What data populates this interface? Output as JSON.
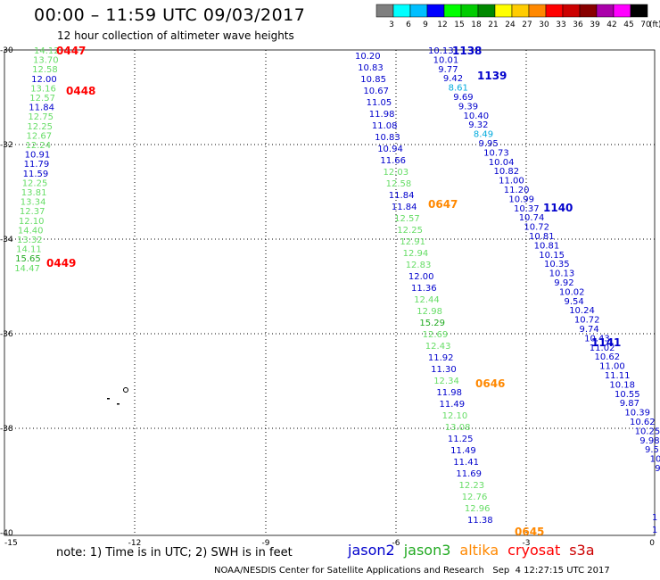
{
  "header": {
    "title": "00:00 – 11:59 UTC 09/03/2017",
    "subtitle": "12 hour collection of altimeter wave heights"
  },
  "colorbar": {
    "unit": "(ft)",
    "entries": [
      {
        "label": "3",
        "color": "#7f7f7f"
      },
      {
        "label": "6",
        "color": "#00ffff"
      },
      {
        "label": "9",
        "color": "#00bfff"
      },
      {
        "label": "12",
        "color": "#0000ff"
      },
      {
        "label": "15",
        "color": "#00ff00"
      },
      {
        "label": "18",
        "color": "#00cc00"
      },
      {
        "label": "21",
        "color": "#008800"
      },
      {
        "label": "24",
        "color": "#ffff00"
      },
      {
        "label": "27",
        "color": "#ffcc00"
      },
      {
        "label": "30",
        "color": "#ff8800"
      },
      {
        "label": "33",
        "color": "#ff0000"
      },
      {
        "label": "36",
        "color": "#cc0000"
      },
      {
        "label": "39",
        "color": "#880000"
      },
      {
        "label": "42",
        "color": "#aa00aa"
      },
      {
        "label": "45",
        "color": "#ff00ff"
      },
      {
        "label": "70",
        "color": "#000000"
      }
    ]
  },
  "axes": {
    "lat_ticks": [
      "-30",
      "-32",
      "-34",
      "-36",
      "-38",
      "-40"
    ],
    "lon_ticks": [
      "-15",
      "-12",
      "-9",
      "-6",
      "-3",
      "0"
    ]
  },
  "colors": {
    "jason2": "#0000cc",
    "jason3": "#22aa22",
    "jason3_light": "#66dd66",
    "altika": "#ff8800",
    "cryosat": "#ff0000",
    "s3a": "#cc0000",
    "cyan": "#00aadd"
  },
  "tracks": [
    {
      "name": "track-left",
      "values": [
        {
          "v": "14.12",
          "c": "jason3_light"
        },
        {
          "v": "13.70",
          "c": "jason3_light"
        },
        {
          "v": "12.58",
          "c": "jason3_light"
        },
        {
          "v": "12.00",
          "c": "jason2"
        },
        {
          "v": "13.16",
          "c": "jason3_light"
        },
        {
          "v": "12.57",
          "c": "jason3_light"
        },
        {
          "v": "11.84",
          "c": "jason2"
        },
        {
          "v": "12.75",
          "c": "jason3_light"
        },
        {
          "v": "12.25",
          "c": "jason3_light"
        },
        {
          "v": "12.67",
          "c": "jason3_light"
        },
        {
          "v": "12.24",
          "c": "jason3_light"
        },
        {
          "v": "10.91",
          "c": "jason2"
        },
        {
          "v": "11.79",
          "c": "jason2"
        },
        {
          "v": "11.59",
          "c": "jason2"
        },
        {
          "v": "12.25",
          "c": "jason3_light"
        },
        {
          "v": "13.81",
          "c": "jason3_light"
        },
        {
          "v": "13.34",
          "c": "jason3_light"
        },
        {
          "v": "12.37",
          "c": "jason3_light"
        },
        {
          "v": "12.10",
          "c": "jason3_light"
        },
        {
          "v": "14.40",
          "c": "jason3_light"
        },
        {
          "v": "13.32",
          "c": "jason3_light"
        },
        {
          "v": "14.11",
          "c": "jason3_light"
        },
        {
          "v": "15.65",
          "c": "jason3"
        },
        {
          "v": "14.47",
          "c": "jason3_light"
        }
      ]
    },
    {
      "name": "track-middle",
      "values": [
        {
          "v": "10.20",
          "c": "jason2"
        },
        {
          "v": "10.83",
          "c": "jason2"
        },
        {
          "v": "10.85",
          "c": "jason2"
        },
        {
          "v": "10.67",
          "c": "jason2"
        },
        {
          "v": "11.05",
          "c": "jason2"
        },
        {
          "v": "11.98",
          "c": "jason2"
        },
        {
          "v": "11.08",
          "c": "jason2"
        },
        {
          "v": "10.83",
          "c": "jason2"
        },
        {
          "v": "10.94",
          "c": "jason2"
        },
        {
          "v": "11.66",
          "c": "jason2"
        },
        {
          "v": "12.03",
          "c": "jason3_light"
        },
        {
          "v": "12.58",
          "c": "jason3_light"
        },
        {
          "v": "11.84",
          "c": "jason2"
        },
        {
          "v": "11.84",
          "c": "jason2"
        },
        {
          "v": "12.57",
          "c": "jason3_light"
        },
        {
          "v": "12.25",
          "c": "jason3_light"
        },
        {
          "v": "12.91",
          "c": "jason3_light"
        },
        {
          "v": "12.94",
          "c": "jason3_light"
        },
        {
          "v": "12.83",
          "c": "jason3_light"
        },
        {
          "v": "12.00",
          "c": "jason2"
        },
        {
          "v": "11.36",
          "c": "jason2"
        },
        {
          "v": "12.44",
          "c": "jason3_light"
        },
        {
          "v": "12.98",
          "c": "jason3_light"
        },
        {
          "v": "15.29",
          "c": "jason3"
        },
        {
          "v": "12.69",
          "c": "jason3_light"
        },
        {
          "v": "12.43",
          "c": "jason3_light"
        },
        {
          "v": "11.92",
          "c": "jason2"
        },
        {
          "v": "11.30",
          "c": "jason2"
        },
        {
          "v": "12.34",
          "c": "jason3_light"
        },
        {
          "v": "11.98",
          "c": "jason2"
        },
        {
          "v": "11.49",
          "c": "jason2"
        },
        {
          "v": "12.10",
          "c": "jason3_light"
        },
        {
          "v": "13.08",
          "c": "jason3_light"
        },
        {
          "v": "11.25",
          "c": "jason2"
        },
        {
          "v": "11.49",
          "c": "jason2"
        },
        {
          "v": "11.41",
          "c": "jason2"
        },
        {
          "v": "11.69",
          "c": "jason2"
        },
        {
          "v": "12.23",
          "c": "jason3_light"
        },
        {
          "v": "12.76",
          "c": "jason3_light"
        },
        {
          "v": "12.96",
          "c": "jason3_light"
        },
        {
          "v": "11.38",
          "c": "jason2"
        }
      ]
    },
    {
      "name": "track-right",
      "values": [
        {
          "v": "10.13",
          "c": "jason2"
        },
        {
          "v": "10.01",
          "c": "jason2"
        },
        {
          "v": "9.77",
          "c": "jason2"
        },
        {
          "v": "9.42",
          "c": "jason2"
        },
        {
          "v": "8.61",
          "c": "cyan"
        },
        {
          "v": "9.69",
          "c": "jason2"
        },
        {
          "v": "9.39",
          "c": "jason2"
        },
        {
          "v": "10.40",
          "c": "jason2"
        },
        {
          "v": "9.32",
          "c": "jason2"
        },
        {
          "v": "8.49",
          "c": "cyan"
        },
        {
          "v": "9.95",
          "c": "jason2"
        },
        {
          "v": "10.73",
          "c": "jason2"
        },
        {
          "v": "10.04",
          "c": "jason2"
        },
        {
          "v": "10.82",
          "c": "jason2"
        },
        {
          "v": "11.00",
          "c": "jason2"
        },
        {
          "v": "11.20",
          "c": "jason2"
        },
        {
          "v": "10.99",
          "c": "jason2"
        },
        {
          "v": "10.37",
          "c": "jason2"
        },
        {
          "v": "10.74",
          "c": "jason2"
        },
        {
          "v": "10.72",
          "c": "jason2"
        },
        {
          "v": "10.81",
          "c": "jason2"
        },
        {
          "v": "10.81",
          "c": "jason2"
        },
        {
          "v": "10.15",
          "c": "jason2"
        },
        {
          "v": "10.35",
          "c": "jason2"
        },
        {
          "v": "10.13",
          "c": "jason2"
        },
        {
          "v": "9.92",
          "c": "jason2"
        },
        {
          "v": "10.02",
          "c": "jason2"
        },
        {
          "v": "9.54",
          "c": "jason2"
        },
        {
          "v": "10.24",
          "c": "jason2"
        },
        {
          "v": "10.72",
          "c": "jason2"
        },
        {
          "v": "9.74",
          "c": "jason2"
        },
        {
          "v": "10.43",
          "c": "jason2"
        },
        {
          "v": "11.02",
          "c": "jason2"
        },
        {
          "v": "10.62",
          "c": "jason2"
        },
        {
          "v": "11.00",
          "c": "jason2"
        },
        {
          "v": "11.11",
          "c": "jason2"
        },
        {
          "v": "10.18",
          "c": "jason2"
        },
        {
          "v": "10.55",
          "c": "jason2"
        },
        {
          "v": "9.87",
          "c": "jason2"
        },
        {
          "v": "10.39",
          "c": "jason2"
        },
        {
          "v": "10.62",
          "c": "jason2"
        },
        {
          "v": "10.25",
          "c": "jason2"
        },
        {
          "v": "9.98",
          "c": "jason2"
        },
        {
          "v": "9.51",
          "c": "jason2"
        },
        {
          "v": "10.97",
          "c": "jason2"
        },
        {
          "v": "9.2",
          "c": "jason2"
        },
        {
          "v": "9",
          "c": "jason2"
        }
      ]
    }
  ],
  "pass_labels": [
    {
      "text": "0447",
      "c": "cryosat"
    },
    {
      "text": "0448",
      "c": "cryosat"
    },
    {
      "text": "0449",
      "c": "cryosat"
    },
    {
      "text": "1138",
      "c": "jason2"
    },
    {
      "text": "1139",
      "c": "jason2"
    },
    {
      "text": "0647",
      "c": "altika"
    },
    {
      "text": "1140",
      "c": "jason2"
    },
    {
      "text": "1141",
      "c": "jason2"
    },
    {
      "text": "0646",
      "c": "altika"
    },
    {
      "text": "0645",
      "c": "altika"
    }
  ],
  "footer": {
    "note": "note: 1) Time is in UTC; 2) SWH is in feet",
    "satellites": [
      {
        "name": "jason2",
        "c": "jason2"
      },
      {
        "name": "jason3",
        "c": "jason3"
      },
      {
        "name": "altika",
        "c": "altika"
      },
      {
        "name": "cryosat",
        "c": "cryosat"
      },
      {
        "name": "s3a",
        "c": "s3a"
      }
    ],
    "credits": "NOAA/NESDIS Center for Satellite Applications and Research   Sep  4 12:27:15 UTC 2017"
  },
  "edge_fragments": [
    "1",
    "1"
  ]
}
